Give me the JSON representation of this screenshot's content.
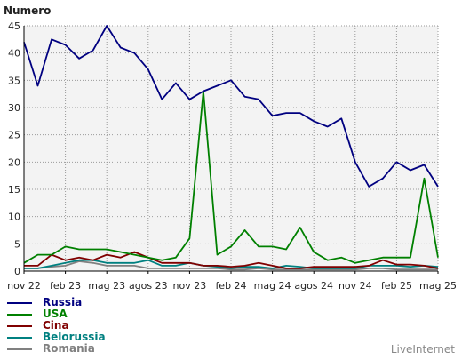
{
  "chart_data": {
    "type": "line",
    "ylabel": "Numero",
    "ylim": [
      0,
      45
    ],
    "yticks": [
      0,
      5,
      10,
      15,
      20,
      25,
      30,
      35,
      40,
      45
    ],
    "x_start": "2022-11",
    "x_ticks": [
      {
        "label": "nov 22",
        "month_index": 0
      },
      {
        "label": "feb 23",
        "month_index": 3
      },
      {
        "label": "mag 23",
        "month_index": 6
      },
      {
        "label": "agos 23",
        "month_index": 9
      },
      {
        "label": "nov 23",
        "month_index": 12
      },
      {
        "label": "feb 24",
        "month_index": 15
      },
      {
        "label": "mag 24",
        "month_index": 18
      },
      {
        "label": "agos 24",
        "month_index": 21
      },
      {
        "label": "nov 24",
        "month_index": 24
      },
      {
        "label": "feb 25",
        "month_index": 27
      },
      {
        "label": "mag 25",
        "month_index": 30
      }
    ],
    "grid": true,
    "series": [
      {
        "name": "Russia",
        "color": "#000080",
        "values": [
          42,
          34,
          42.5,
          41.5,
          39,
          40.5,
          45,
          41,
          40,
          37,
          31.5,
          34.5,
          31.5,
          33,
          34,
          35,
          32,
          31.5,
          28.5,
          29,
          29,
          27.5,
          26.5,
          28,
          20,
          15.5,
          17,
          20,
          18.5,
          19.5,
          15.5
        ]
      },
      {
        "name": "USA",
        "color": "#008000",
        "values": [
          1.5,
          3,
          3,
          4.5,
          4,
          4,
          4,
          3.5,
          3,
          2.5,
          2,
          2.5,
          6,
          33,
          3,
          4.5,
          7.5,
          4.5,
          4.5,
          4,
          8,
          3.5,
          2,
          2.5,
          1.5,
          2,
          2.5,
          2.5,
          2.5,
          17,
          2.5
        ]
      },
      {
        "name": "Cina",
        "color": "#800000",
        "values": [
          1,
          1,
          3,
          2,
          2.5,
          2,
          3,
          2.5,
          3.5,
          2.5,
          1.5,
          1.5,
          1.5,
          1,
          1,
          0.8,
          1,
          1.5,
          1,
          0.5,
          0.5,
          0.8,
          0.8,
          0.8,
          0.8,
          1,
          2,
          1.2,
          1.2,
          1,
          0.5
        ]
      },
      {
        "name": "Belorussia",
        "color": "#008080",
        "values": [
          0.5,
          0.5,
          1,
          1.5,
          2,
          2,
          1.5,
          1.5,
          1.5,
          2,
          1,
          1,
          1.5,
          1,
          0.8,
          0.5,
          0.8,
          0.8,
          0.5,
          1,
          0.8,
          0.5,
          0.5,
          0.5,
          0.5,
          1,
          1,
          1,
          0.8,
          1,
          0.8
        ]
      },
      {
        "name": "Romania",
        "color": "#808080",
        "values": [
          0.5,
          0.5,
          0.8,
          1,
          1.8,
          1.5,
          1,
          1,
          1,
          0.5,
          0.5,
          0.5,
          0.5,
          0.5,
          0.5,
          0.3,
          0.3,
          0.5,
          0.3,
          0.3,
          0.3,
          0.3,
          0.3,
          0.3,
          0.3,
          0.5,
          0.5,
          0.3,
          0.3,
          0.3,
          0.3
        ]
      }
    ]
  },
  "branding": "LiveInternet"
}
